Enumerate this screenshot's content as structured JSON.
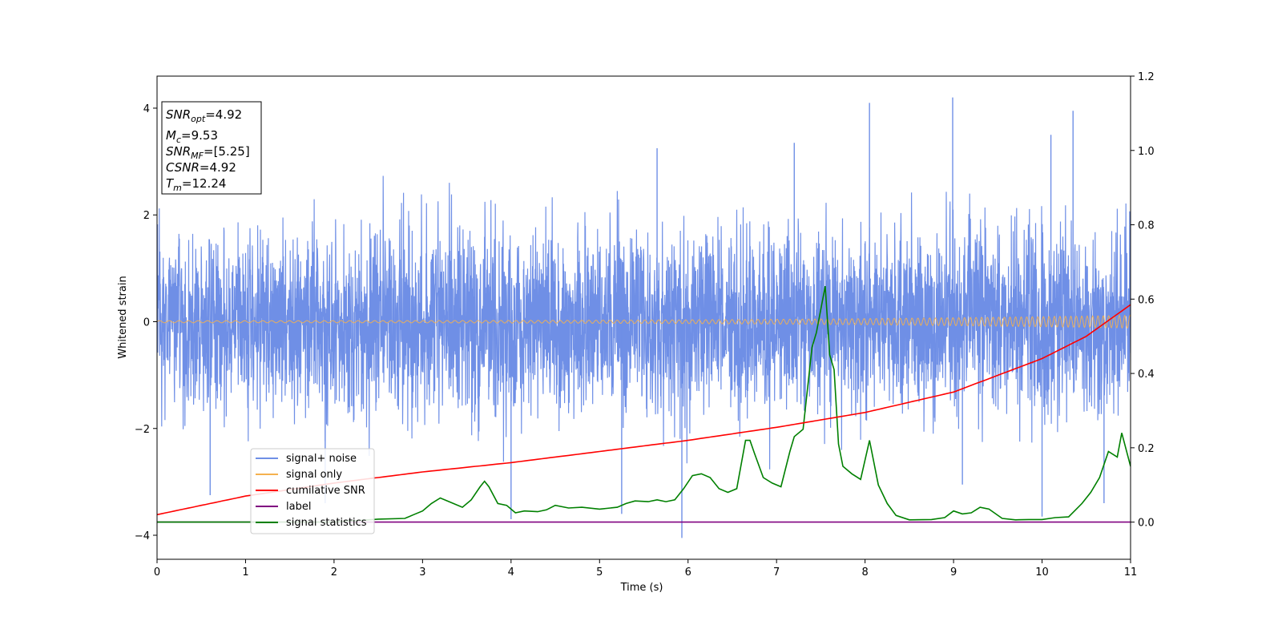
{
  "chart_data": {
    "type": "line",
    "xlabel": "Time (s)",
    "ylabel": "Whitened strain",
    "xlim": [
      0,
      11
    ],
    "ylim_left": [
      -4.45,
      4.6
    ],
    "ylim_right": [
      -0.1,
      1.2
    ],
    "x_ticks": [
      0,
      1,
      2,
      3,
      4,
      5,
      6,
      7,
      8,
      9,
      10,
      11
    ],
    "y_ticks_left": [
      -4,
      -2,
      0,
      2,
      4
    ],
    "y_ticks_right": [
      0.0,
      0.2,
      0.4,
      0.6,
      0.8,
      1.0,
      1.2
    ],
    "y_tick_labels_left": [
      "−4",
      "−2",
      "0",
      "2",
      "4"
    ],
    "y_tick_labels_right": [
      "0.0",
      "0.2",
      "0.4",
      "0.6",
      "0.8",
      "1.0",
      "1.2"
    ],
    "grid": false,
    "legend_position": "lower-left",
    "colors": {
      "noise": "#6f8fe6",
      "signal": "#f5b14f",
      "csnr": "#ff0000",
      "label": "#800080",
      "stats": "#008000"
    },
    "series": [
      {
        "name": "signal+ noise",
        "axis": "left",
        "description_level": "dense noise, roughly within -2.3..2.3 with spikes to about 4.2",
        "spikes": [
          [
            0.6,
            -3.25
          ],
          [
            1.9,
            -3.4
          ],
          [
            4.0,
            -3.7
          ],
          [
            5.25,
            -3.6
          ],
          [
            5.65,
            3.25
          ],
          [
            5.93,
            -4.05
          ],
          [
            7.2,
            3.35
          ],
          [
            8.05,
            4.1
          ],
          [
            8.99,
            4.2
          ],
          [
            9.1,
            -3.05
          ],
          [
            10.0,
            -3.65
          ],
          [
            10.1,
            3.5
          ],
          [
            10.35,
            3.95
          ],
          [
            10.7,
            -3.4
          ]
        ]
      },
      {
        "name": "signal only",
        "axis": "left",
        "amplitude_start": 0.02,
        "amplitude_end": 0.12
      },
      {
        "name": "cumilative SNR",
        "axis": "right",
        "x": [
          0,
          1,
          2,
          3,
          4,
          5,
          6,
          7,
          8,
          9,
          10,
          10.5,
          11
        ],
        "y": [
          0.02,
          0.07,
          0.105,
          0.135,
          0.16,
          0.19,
          0.22,
          0.255,
          0.295,
          0.35,
          0.44,
          0.5,
          0.585
        ]
      },
      {
        "name": "label",
        "axis": "right",
        "x": [
          0,
          11
        ],
        "y": [
          0.0,
          0.0
        ]
      },
      {
        "name": "signal statistics",
        "axis": "right",
        "x": [
          0,
          2.0,
          2.5,
          2.8,
          2.9,
          3.0,
          3.1,
          3.2,
          3.3,
          3.45,
          3.55,
          3.65,
          3.7,
          3.75,
          3.85,
          3.95,
          4.05,
          4.15,
          4.3,
          4.4,
          4.5,
          4.65,
          4.8,
          5.0,
          5.2,
          5.3,
          5.4,
          5.55,
          5.65,
          5.75,
          5.85,
          5.95,
          6.05,
          6.15,
          6.25,
          6.35,
          6.45,
          6.55,
          6.65,
          6.7,
          6.75,
          6.85,
          6.95,
          7.05,
          7.15,
          7.2,
          7.3,
          7.4,
          7.45,
          7.55,
          7.6,
          7.65,
          7.7,
          7.75,
          7.85,
          7.95,
          8.05,
          8.15,
          8.25,
          8.35,
          8.5,
          8.75,
          8.9,
          9.0,
          9.1,
          9.2,
          9.3,
          9.4,
          9.55,
          9.7,
          9.85,
          10.0,
          10.15,
          10.3,
          10.45,
          10.55,
          10.65,
          10.75,
          10.85,
          10.9,
          11.0
        ],
        "y": [
          0.0,
          0.0,
          0.008,
          0.01,
          0.02,
          0.03,
          0.05,
          0.065,
          0.055,
          0.04,
          0.06,
          0.095,
          0.11,
          0.095,
          0.05,
          0.045,
          0.025,
          0.03,
          0.028,
          0.033,
          0.045,
          0.038,
          0.04,
          0.035,
          0.04,
          0.05,
          0.057,
          0.055,
          0.06,
          0.055,
          0.06,
          0.09,
          0.125,
          0.13,
          0.12,
          0.09,
          0.08,
          0.09,
          0.22,
          0.22,
          0.185,
          0.12,
          0.105,
          0.095,
          0.19,
          0.23,
          0.25,
          0.47,
          0.51,
          0.635,
          0.45,
          0.41,
          0.21,
          0.15,
          0.13,
          0.115,
          0.22,
          0.1,
          0.05,
          0.018,
          0.006,
          0.007,
          0.012,
          0.03,
          0.022,
          0.025,
          0.04,
          0.035,
          0.01,
          0.006,
          0.007,
          0.007,
          0.012,
          0.014,
          0.05,
          0.08,
          0.12,
          0.19,
          0.175,
          0.24,
          0.15
        ]
      }
    ]
  },
  "legend": {
    "items": [
      {
        "label": "signal+ noise"
      },
      {
        "label": "signal only"
      },
      {
        "label": "cumilative SNR"
      },
      {
        "label": "label"
      },
      {
        "label": "signal statistics"
      }
    ]
  },
  "stats_box": {
    "snr_opt": {
      "base": "SNR",
      "sub": "opt",
      "value": "=4.92"
    },
    "mc": {
      "base": "M",
      "sub": "c",
      "value": "=9.53"
    },
    "snr_mf": {
      "base": "SNR",
      "sub": "MF",
      "value": "=[5.25]"
    },
    "csnr": {
      "base": "CSNR",
      "value": "=4.92"
    },
    "tm": {
      "base": "T",
      "sub": "m",
      "value": "=12.24"
    }
  }
}
